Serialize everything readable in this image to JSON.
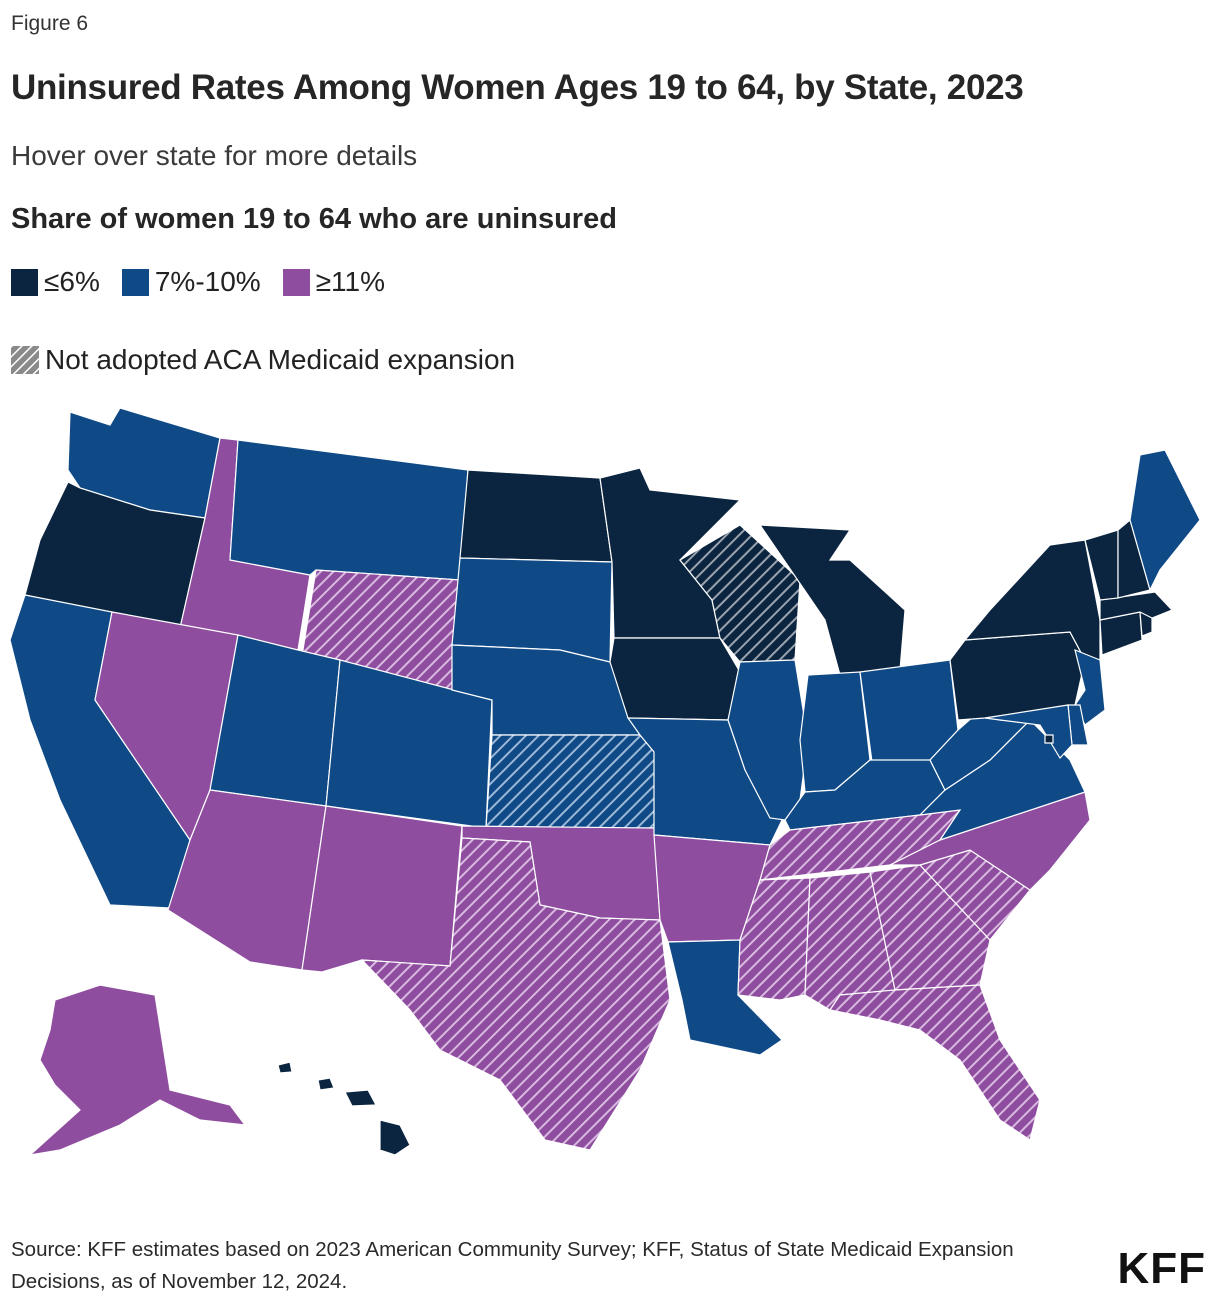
{
  "figure_label": "Figure 6",
  "title": "Uninsured Rates Among Women Ages 19 to 64, by State, 2023",
  "subtitle": "Hover over state for more details",
  "legend": {
    "title": "Share of women 19 to 64 who are uninsured",
    "items": [
      {
        "label": "≤6%",
        "color": "#0b2540"
      },
      {
        "label": "7%-10%",
        "color": "#0f4a87"
      },
      {
        "label": "≥11%",
        "color": "#8f4d9f"
      }
    ],
    "hatch_label": "Not adopted ACA Medicaid expansion"
  },
  "map_data": {
    "categories": {
      "low": "≤6%",
      "mid": "7%-10%",
      "high": "≥11%"
    },
    "states": [
      {
        "code": "WA",
        "category": "mid",
        "not_expanded": false
      },
      {
        "code": "OR",
        "category": "low",
        "not_expanded": false
      },
      {
        "code": "CA",
        "category": "mid",
        "not_expanded": false
      },
      {
        "code": "ID",
        "category": "high",
        "not_expanded": false
      },
      {
        "code": "NV",
        "category": "high",
        "not_expanded": false
      },
      {
        "code": "MT",
        "category": "mid",
        "not_expanded": false
      },
      {
        "code": "WY",
        "category": "high",
        "not_expanded": true
      },
      {
        "code": "UT",
        "category": "mid",
        "not_expanded": false
      },
      {
        "code": "AZ",
        "category": "high",
        "not_expanded": false
      },
      {
        "code": "CO",
        "category": "mid",
        "not_expanded": false
      },
      {
        "code": "NM",
        "category": "high",
        "not_expanded": false
      },
      {
        "code": "ND",
        "category": "low",
        "not_expanded": false
      },
      {
        "code": "SD",
        "category": "mid",
        "not_expanded": false
      },
      {
        "code": "NE",
        "category": "mid",
        "not_expanded": false
      },
      {
        "code": "KS",
        "category": "mid",
        "not_expanded": true
      },
      {
        "code": "OK",
        "category": "high",
        "not_expanded": false
      },
      {
        "code": "TX",
        "category": "high",
        "not_expanded": true
      },
      {
        "code": "MN",
        "category": "low",
        "not_expanded": false
      },
      {
        "code": "IA",
        "category": "low",
        "not_expanded": false
      },
      {
        "code": "MO",
        "category": "mid",
        "not_expanded": false
      },
      {
        "code": "AR",
        "category": "high",
        "not_expanded": false
      },
      {
        "code": "LA",
        "category": "mid",
        "not_expanded": false
      },
      {
        "code": "WI",
        "category": "low",
        "not_expanded": true
      },
      {
        "code": "IL",
        "category": "mid",
        "not_expanded": false
      },
      {
        "code": "MI",
        "category": "low",
        "not_expanded": false
      },
      {
        "code": "IN",
        "category": "mid",
        "not_expanded": false
      },
      {
        "code": "OH",
        "category": "mid",
        "not_expanded": false
      },
      {
        "code": "KY",
        "category": "mid",
        "not_expanded": false
      },
      {
        "code": "TN",
        "category": "high",
        "not_expanded": true
      },
      {
        "code": "MS",
        "category": "high",
        "not_expanded": true
      },
      {
        "code": "AL",
        "category": "high",
        "not_expanded": true
      },
      {
        "code": "GA",
        "category": "high",
        "not_expanded": true
      },
      {
        "code": "FL",
        "category": "high",
        "not_expanded": true
      },
      {
        "code": "SC",
        "category": "high",
        "not_expanded": true
      },
      {
        "code": "NC",
        "category": "high",
        "not_expanded": false
      },
      {
        "code": "VA",
        "category": "mid",
        "not_expanded": false
      },
      {
        "code": "WV",
        "category": "mid",
        "not_expanded": false
      },
      {
        "code": "PA",
        "category": "low",
        "not_expanded": false
      },
      {
        "code": "NY",
        "category": "low",
        "not_expanded": false
      },
      {
        "code": "NJ",
        "category": "mid",
        "not_expanded": false
      },
      {
        "code": "DE",
        "category": "mid",
        "not_expanded": false
      },
      {
        "code": "MD",
        "category": "mid",
        "not_expanded": false
      },
      {
        "code": "DC",
        "category": "low",
        "not_expanded": false
      },
      {
        "code": "CT",
        "category": "low",
        "not_expanded": false
      },
      {
        "code": "RI",
        "category": "low",
        "not_expanded": false
      },
      {
        "code": "MA",
        "category": "low",
        "not_expanded": false
      },
      {
        "code": "VT",
        "category": "low",
        "not_expanded": false
      },
      {
        "code": "NH",
        "category": "low",
        "not_expanded": false
      },
      {
        "code": "ME",
        "category": "mid",
        "not_expanded": false
      },
      {
        "code": "AK",
        "category": "high",
        "not_expanded": false
      },
      {
        "code": "HI",
        "category": "low",
        "not_expanded": false
      }
    ]
  },
  "source": "Source: KFF estimates based on 2023 American Community Survey; KFF, Status of State Medicaid Expansion Decisions, as of November 12, 2024.",
  "logo": "KFF"
}
